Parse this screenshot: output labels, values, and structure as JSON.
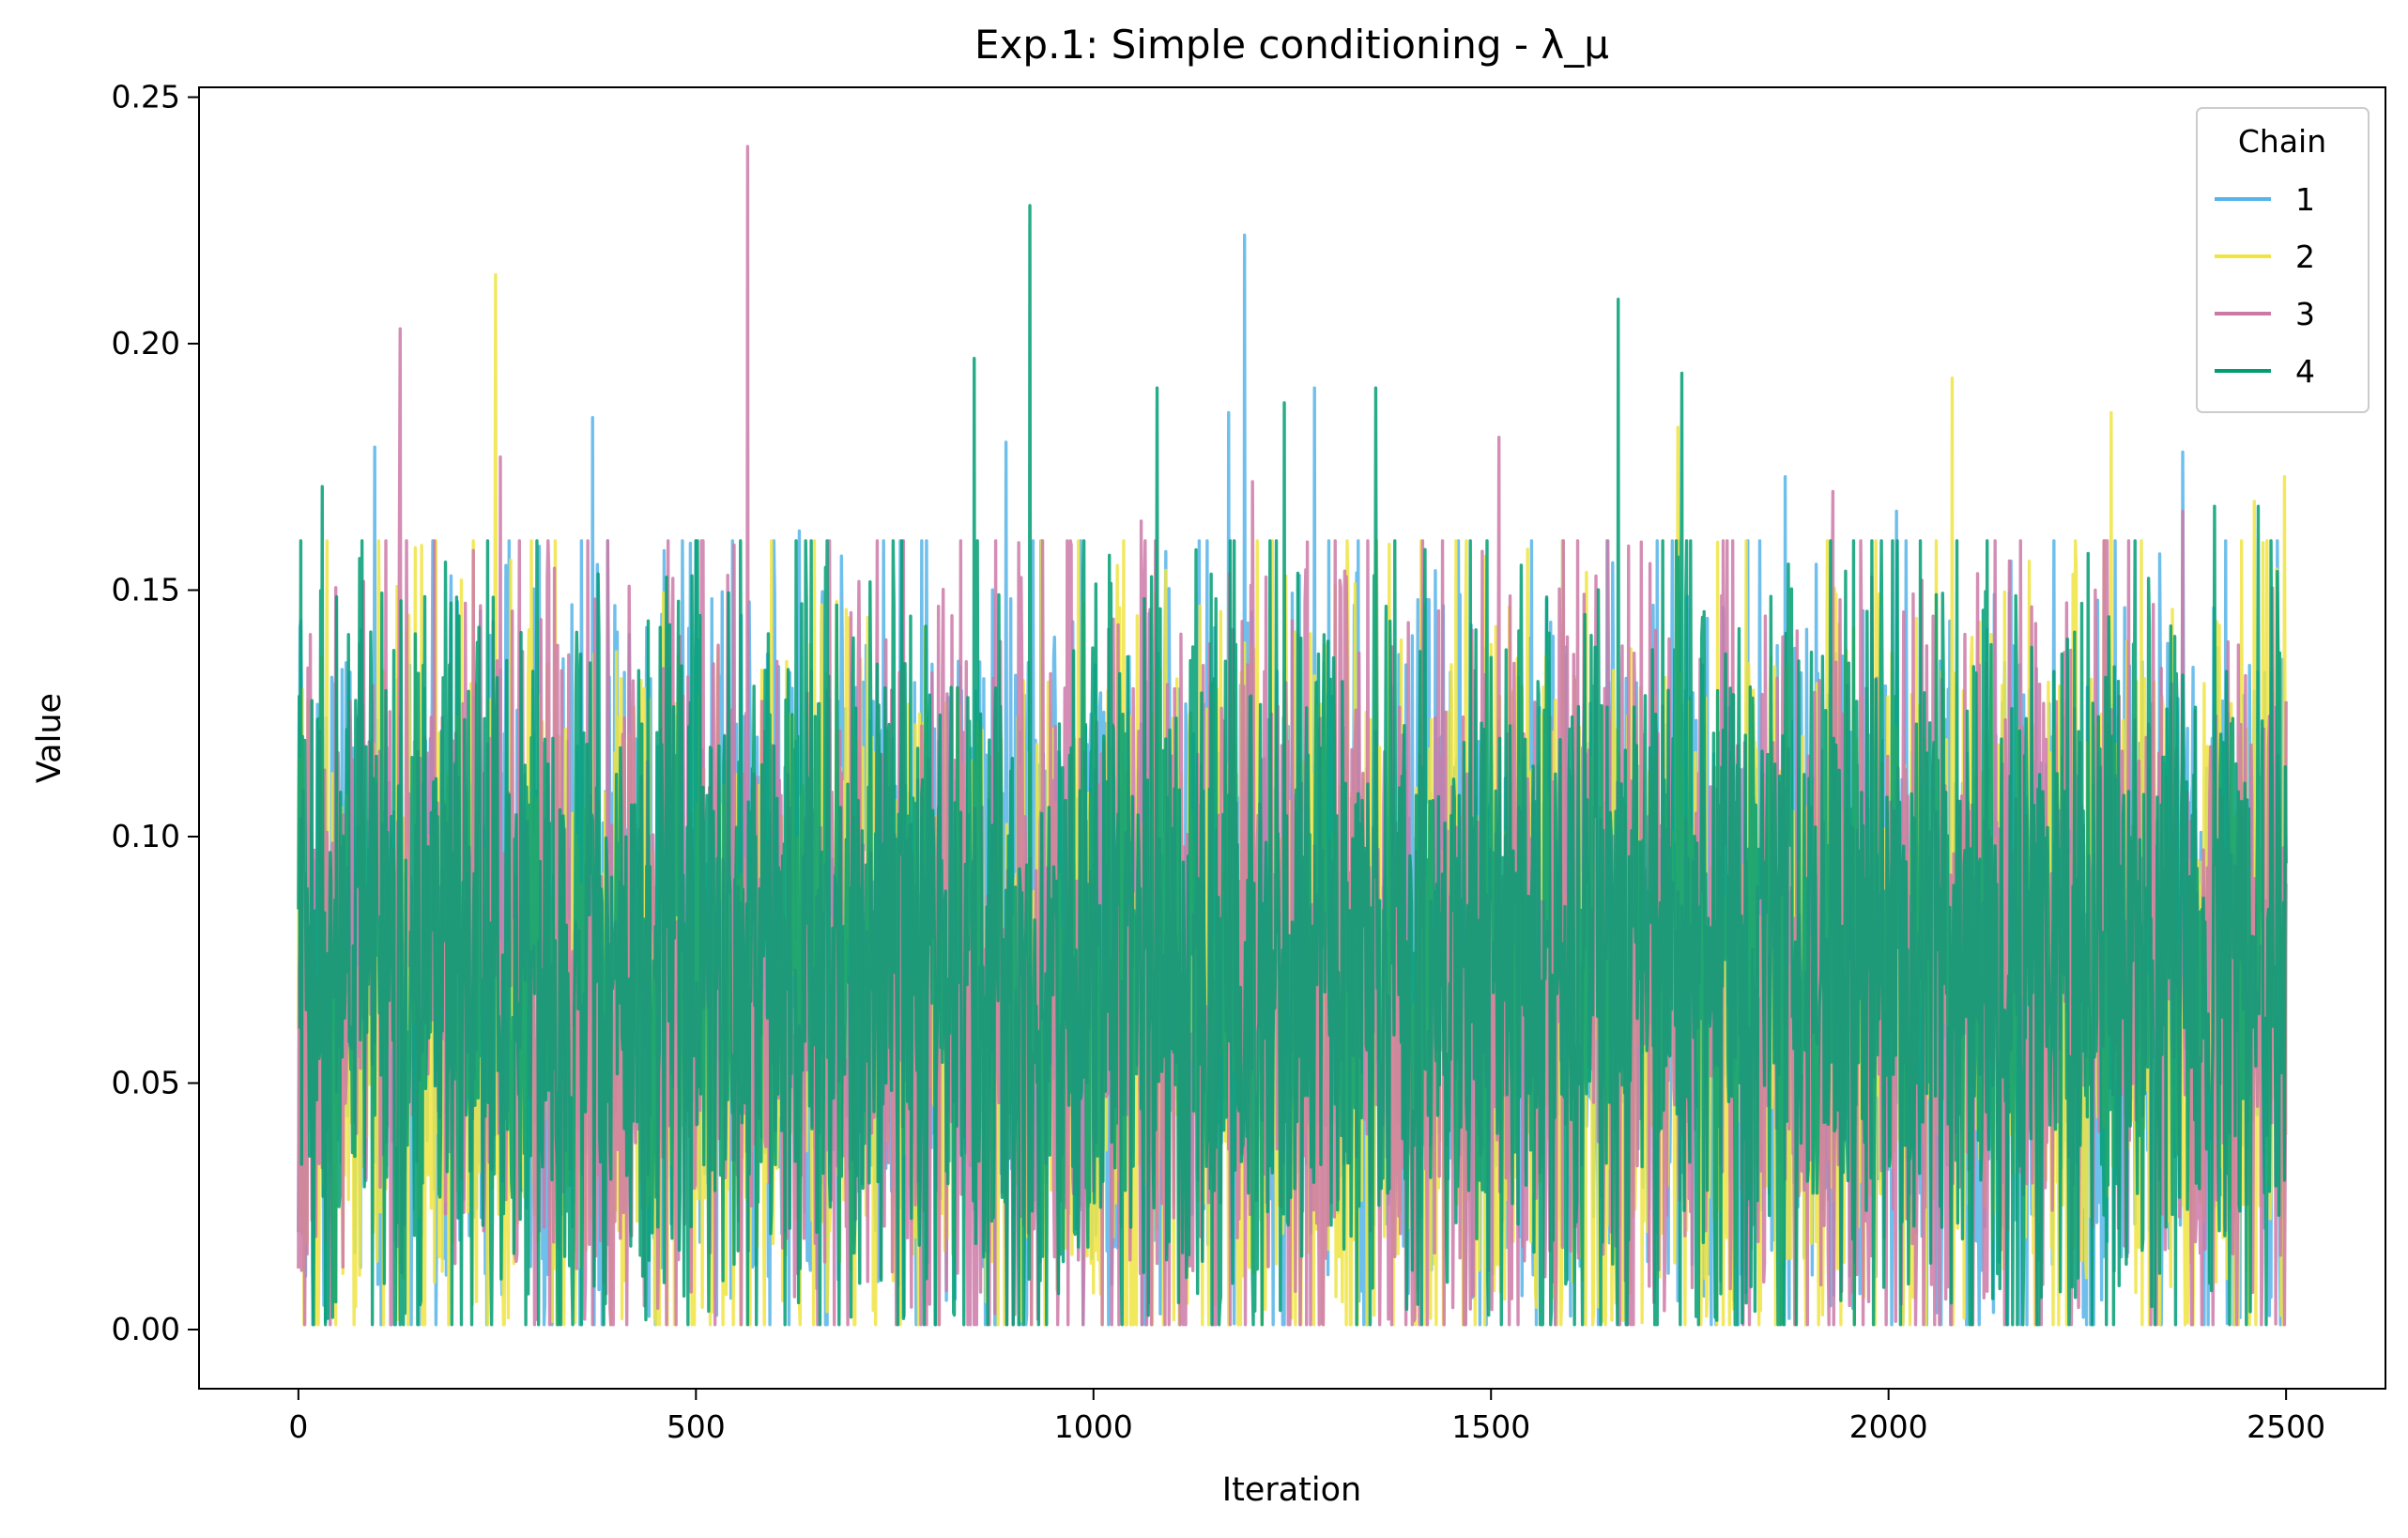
{
  "chart_data": {
    "type": "line",
    "title": "Exp.1: Simple conditioning - λ_μ",
    "xlabel": "Iteration",
    "ylabel": "Value",
    "xlim": [
      -125,
      2625
    ],
    "ylim": [
      -0.012,
      0.252
    ],
    "x_ticks": [
      0,
      500,
      1000,
      1500,
      2000,
      2500
    ],
    "x_tick_labels": [
      "0",
      "500",
      "1000",
      "1500",
      "2000",
      "2500"
    ],
    "y_ticks": [
      0.0,
      0.05,
      0.1,
      0.15,
      0.2,
      0.25
    ],
    "y_tick_labels": [
      "0.00",
      "0.05",
      "0.10",
      "0.15",
      "0.20",
      "0.25"
    ],
    "iterations": [
      0,
      2500
    ],
    "grid": false,
    "legend": {
      "title": "Chain",
      "placement": "top-right"
    },
    "series": [
      {
        "name": "1",
        "color": "#56b4e9",
        "mean": 0.074,
        "sd": 0.04,
        "peaks": [
          [
            96,
            0.179
          ],
          [
            370,
            0.185
          ],
          [
            460,
            0.158
          ],
          [
            630,
            0.162
          ],
          [
            890,
            0.18
          ],
          [
            1170,
            0.186
          ],
          [
            1190,
            0.222
          ],
          [
            1278,
            0.191
          ],
          [
            1870,
            0.173
          ],
          [
            2010,
            0.166
          ],
          [
            2370,
            0.178
          ]
        ]
      },
      {
        "name": "2",
        "color": "#f0e442",
        "mean": 0.068,
        "sd": 0.04,
        "peaks": [
          [
            248,
            0.214
          ],
          [
            595,
            0.16
          ],
          [
            1030,
            0.155
          ],
          [
            1735,
            0.183
          ],
          [
            2080,
            0.193
          ],
          [
            2280,
            0.186
          ],
          [
            2460,
            0.168
          ],
          [
            2498,
            0.173
          ]
        ]
      },
      {
        "name": "3",
        "color": "#cc79a7",
        "mean": 0.072,
        "sd": 0.04,
        "peaks": [
          [
            128,
            0.203
          ],
          [
            254,
            0.177
          ],
          [
            565,
            0.24
          ],
          [
            1060,
            0.164
          ],
          [
            1200,
            0.172
          ],
          [
            1510,
            0.181
          ],
          [
            1930,
            0.17
          ],
          [
            2260,
            0.15
          ],
          [
            2370,
            0.166
          ]
        ]
      },
      {
        "name": "4",
        "color": "#009e73",
        "mean": 0.073,
        "sd": 0.04,
        "peaks": [
          [
            30,
            0.171
          ],
          [
            850,
            0.197
          ],
          [
            920,
            0.228
          ],
          [
            1080,
            0.191
          ],
          [
            1240,
            0.188
          ],
          [
            1355,
            0.191
          ],
          [
            1660,
            0.209
          ],
          [
            1740,
            0.194
          ],
          [
            2410,
            0.167
          ],
          [
            2465,
            0.167
          ]
        ]
      }
    ]
  }
}
